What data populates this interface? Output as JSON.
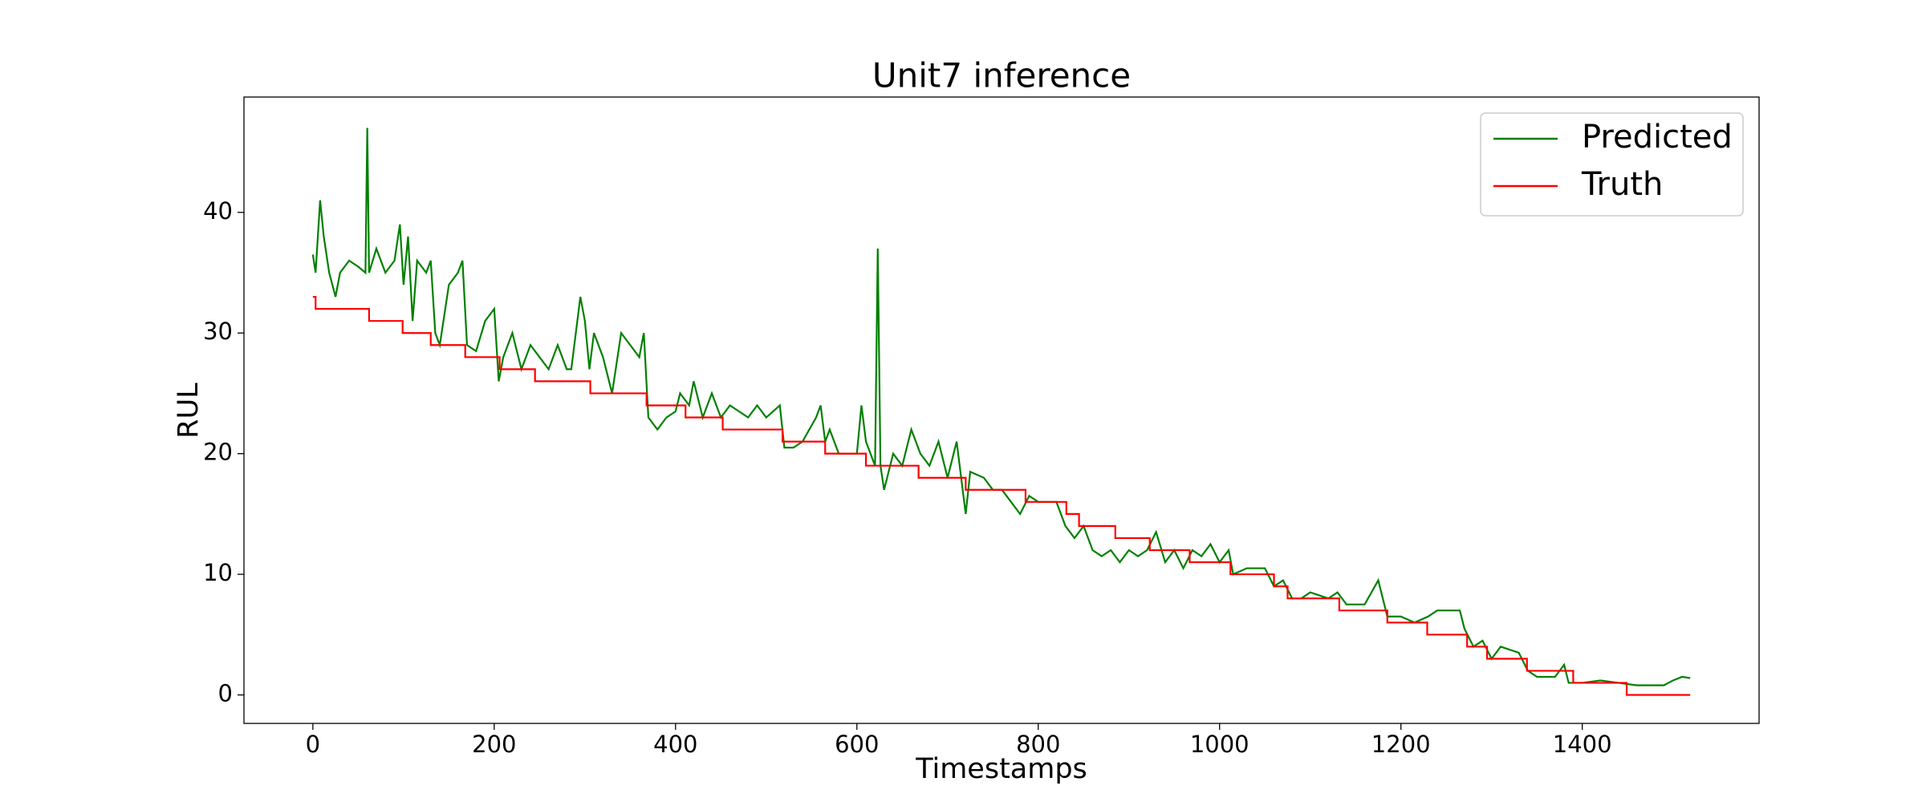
{
  "chart_data": {
    "type": "line",
    "title": "Unit7 inference",
    "xlabel": "Timestamps",
    "ylabel": "RUL",
    "xlim": [
      -76,
      1595
    ],
    "ylim": [
      -2.36,
      49.56
    ],
    "xticks": [
      0,
      200,
      400,
      600,
      800,
      1000,
      1200,
      1400
    ],
    "yticks": [
      0,
      10,
      20,
      30,
      40
    ],
    "legend": "upper right",
    "series": [
      {
        "name": "Predicted",
        "color": "#008000",
        "x": [
          0,
          3,
          8,
          12,
          18,
          25,
          30,
          40,
          50,
          58,
          60,
          62,
          70,
          80,
          90,
          96,
          100,
          105,
          110,
          115,
          125,
          130,
          135,
          140,
          150,
          160,
          165,
          170,
          180,
          190,
          200,
          205,
          210,
          220,
          230,
          240,
          250,
          260,
          270,
          280,
          285,
          295,
          300,
          305,
          310,
          320,
          330,
          340,
          350,
          360,
          365,
          370,
          380,
          390,
          400,
          405,
          415,
          420,
          430,
          440,
          450,
          460,
          470,
          480,
          490,
          500,
          515,
          520,
          530,
          540,
          555,
          560,
          565,
          570,
          580,
          590,
          600,
          605,
          610,
          620,
          623,
          626,
          630,
          640,
          650,
          660,
          670,
          680,
          690,
          700,
          710,
          715,
          720,
          725,
          740,
          750,
          760,
          770,
          780,
          790,
          800,
          820,
          830,
          840,
          850,
          860,
          870,
          880,
          890,
          900,
          910,
          920,
          930,
          940,
          950,
          960,
          970,
          980,
          990,
          1000,
          1010,
          1015,
          1030,
          1050,
          1060,
          1070,
          1080,
          1090,
          1100,
          1120,
          1130,
          1140,
          1160,
          1175,
          1185,
          1200,
          1215,
          1230,
          1240,
          1265,
          1270,
          1280,
          1290,
          1300,
          1310,
          1330,
          1340,
          1350,
          1370,
          1380,
          1385,
          1400,
          1420,
          1440,
          1460,
          1490,
          1500,
          1510,
          1519
        ],
        "values": [
          36.5,
          35,
          41,
          38,
          35,
          33,
          35,
          36,
          35.5,
          35,
          47,
          35,
          37,
          35,
          36,
          39,
          34,
          38,
          31,
          36,
          35,
          36,
          30,
          29,
          34,
          35,
          36,
          29,
          28.5,
          31,
          32,
          26,
          28,
          30,
          27,
          29,
          28,
          27,
          29,
          27,
          27,
          33,
          31,
          27,
          30,
          28,
          25,
          30,
          29,
          28,
          30,
          23,
          22,
          23,
          23.5,
          25,
          24,
          26,
          23,
          25,
          23,
          24,
          23.5,
          23,
          24,
          23,
          24,
          20.5,
          20.5,
          21,
          23,
          24,
          21,
          22,
          20,
          20,
          20,
          24,
          21,
          19,
          37,
          19,
          17,
          20,
          19,
          22,
          20,
          19,
          21,
          18,
          21,
          18,
          15,
          18.5,
          18,
          17,
          17,
          16,
          15,
          16.5,
          16,
          16,
          14,
          13,
          14,
          12,
          11.5,
          12,
          11,
          12,
          11.5,
          12,
          13.5,
          11,
          12,
          10.5,
          12,
          11.5,
          12.5,
          11,
          12,
          10,
          10.5,
          10.5,
          9,
          9.5,
          8,
          8,
          8.5,
          8,
          8.5,
          7.5,
          7.5,
          9.5,
          6.5,
          6.5,
          6,
          6.5,
          7,
          7,
          5.5,
          4,
          4.5,
          3,
          4,
          3.5,
          2,
          1.5,
          1.5,
          2.5,
          1,
          1,
          1.2,
          1,
          0.8,
          0.8,
          1.2,
          1.5,
          1.4
        ]
      },
      {
        "name": "Truth",
        "color": "#ff0000",
        "x": [
          0,
          3,
          3,
          62,
          62,
          99,
          99,
          130,
          130,
          168,
          168,
          206,
          206,
          245,
          245,
          306,
          306,
          368,
          368,
          411,
          411,
          452,
          452,
          518,
          518,
          565,
          565,
          610,
          610,
          668,
          668,
          720,
          720,
          786,
          786,
          831,
          831,
          845,
          845,
          885,
          885,
          923,
          923,
          967,
          967,
          1012,
          1012,
          1060,
          1060,
          1075,
          1075,
          1132,
          1132,
          1185,
          1185,
          1229,
          1229,
          1273,
          1273,
          1295,
          1295,
          1339,
          1339,
          1390,
          1390,
          1449,
          1449,
          1519
        ],
        "values": [
          33,
          33,
          32,
          32,
          31,
          31,
          30,
          30,
          29,
          29,
          28,
          28,
          27,
          27,
          26,
          26,
          25,
          25,
          24,
          24,
          23,
          23,
          22,
          22,
          21,
          21,
          20,
          20,
          19,
          19,
          18,
          18,
          17,
          17,
          16,
          16,
          15,
          15,
          14,
          14,
          13,
          13,
          12,
          12,
          11,
          11,
          10,
          10,
          9,
          9,
          8,
          8,
          7,
          7,
          6,
          6,
          5,
          5,
          4,
          4,
          3,
          3,
          2,
          2,
          1,
          1,
          0,
          0
        ]
      }
    ]
  }
}
